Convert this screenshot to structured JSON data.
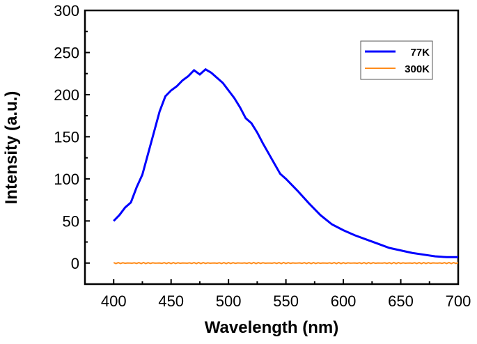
{
  "chart_data": {
    "type": "line",
    "xlabel": "Wavelength (nm)",
    "ylabel": "Intensity (a.u.)",
    "xlim": [
      375,
      700
    ],
    "ylim": [
      -25,
      300
    ],
    "xticks": [
      400,
      450,
      500,
      550,
      600,
      650,
      700
    ],
    "yticks": [
      0,
      50,
      100,
      150,
      200,
      250,
      300
    ],
    "grid": false,
    "legend_position": "top-right",
    "series": [
      {
        "name": "77K",
        "color": "#0000ff",
        "x": [
          400,
          405,
          410,
          415,
          420,
          425,
          430,
          435,
          440,
          445,
          450,
          455,
          460,
          465,
          470,
          475,
          480,
          485,
          490,
          495,
          500,
          505,
          510,
          515,
          520,
          525,
          530,
          535,
          540,
          545,
          550,
          560,
          570,
          580,
          590,
          600,
          610,
          620,
          630,
          640,
          650,
          660,
          670,
          680,
          690,
          700
        ],
        "y": [
          50,
          57,
          66,
          72,
          90,
          105,
          130,
          155,
          180,
          198,
          205,
          210,
          217,
          222,
          229,
          224,
          230,
          226,
          220,
          214,
          205,
          196,
          185,
          172,
          166,
          155,
          142,
          130,
          118,
          106,
          100,
          86,
          71,
          57,
          46,
          39,
          33,
          28,
          23,
          18,
          15,
          12,
          10,
          8,
          7,
          7
        ]
      },
      {
        "name": "300K",
        "color": "#ff8c1a",
        "x": [
          400,
          450,
          500,
          550,
          600,
          650,
          700
        ],
        "y": [
          0,
          0,
          0,
          0,
          0,
          0,
          0
        ]
      }
    ]
  }
}
